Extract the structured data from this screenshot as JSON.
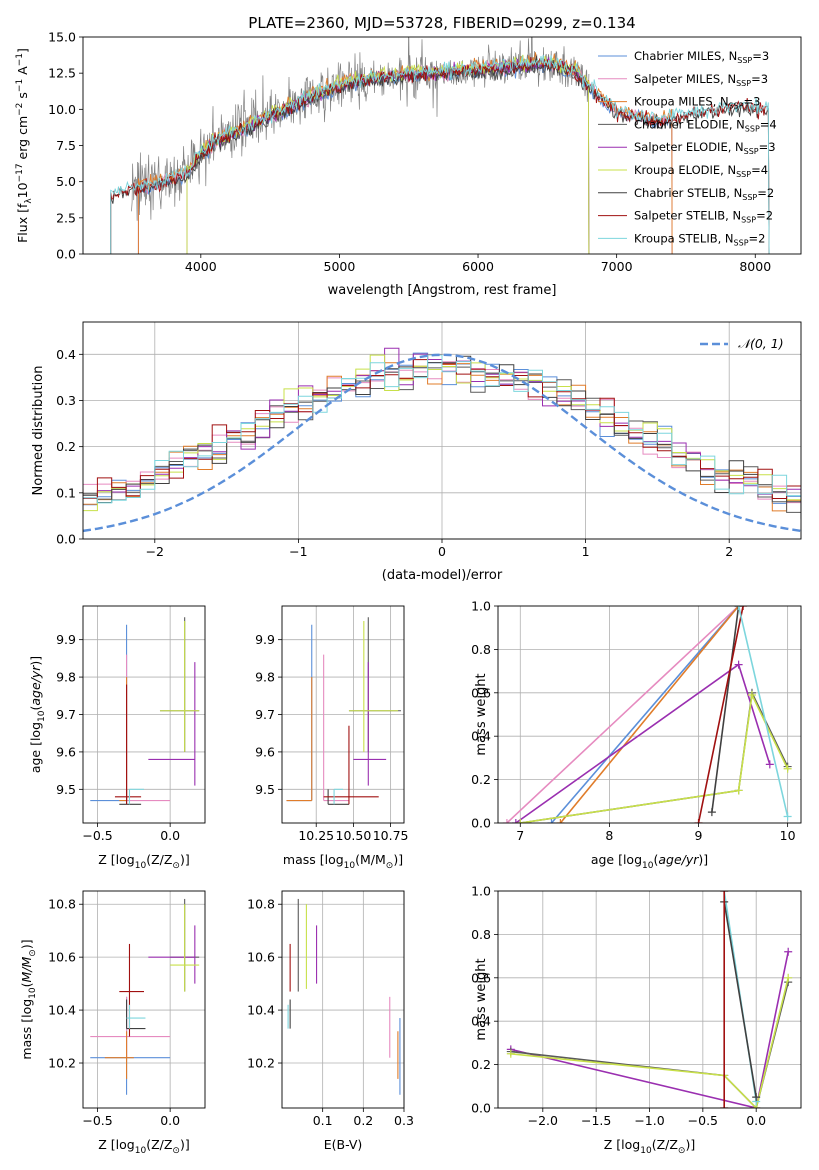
{
  "colors": {
    "Chabrier MILES": "#5b8fd9",
    "Salpeter MILES": "#e68bc0",
    "Kroupa MILES": "#e07c2a",
    "Chabrier ELODIE": "#5a5a5a",
    "Salpeter ELODIE": "#9a2fb0",
    "Kroupa ELODIE": "#c8e04a",
    "Chabrier STELIB": "#404040",
    "Salpeter STELIB": "#a01010",
    "Kroupa STELIB": "#7dd6dd",
    "data": "#808080",
    "normal": "#5b8fd9"
  },
  "chart_data": [
    {
      "type": "line",
      "id": "spectrum",
      "title": "PLATE=2360, MJD=53728, FIBERID=0299, z=0.134",
      "xlabel": "wavelength [Angstrom, rest frame]",
      "ylabel_pre": "Flux [f",
      "ylabel_sub1": "λ",
      "ylabel_mid1": "10",
      "ylabel_sup1": "−17",
      "ylabel_mid2": " erg cm",
      "ylabel_sup2": "−2",
      "ylabel_mid3": " s",
      "ylabel_sup3": "−1",
      "ylabel_mid4": " A",
      "ylabel_sup4": "−1",
      "ylabel_post": "]",
      "xlim": [
        3150,
        8330
      ],
      "ylim": [
        0,
        15
      ],
      "xticks": [
        4000,
        5000,
        6000,
        7000,
        8000
      ],
      "yticks": [
        0.0,
        2.5,
        5.0,
        7.5,
        10.0,
        12.5,
        15.0
      ],
      "legend_loc": "upper right",
      "legend": [
        {
          "name": "Chabrier MILES, N",
          "sub": "SSP",
          "tail": "=3",
          "color_key": "Chabrier MILES"
        },
        {
          "name": "Salpeter MILES, N",
          "sub": "SSP",
          "tail": "=3",
          "color_key": "Salpeter MILES"
        },
        {
          "name": "Kroupa MILES, N",
          "sub": "SSP",
          "tail": "=3",
          "color_key": "Kroupa MILES"
        },
        {
          "name": "Chabrier ELODIE, N",
          "sub": "SSP",
          "tail": "=4",
          "color_key": "Chabrier ELODIE"
        },
        {
          "name": "Salpeter ELODIE, N",
          "sub": "SSP",
          "tail": "=3",
          "color_key": "Salpeter ELODIE"
        },
        {
          "name": "Kroupa ELODIE, N",
          "sub": "SSP",
          "tail": "=4",
          "color_key": "Kroupa ELODIE"
        },
        {
          "name": "Chabrier STELIB, N",
          "sub": "SSP",
          "tail": "=2",
          "color_key": "Chabrier STELIB"
        },
        {
          "name": "Salpeter STELIB, N",
          "sub": "SSP",
          "tail": "=2",
          "color_key": "Salpeter STELIB"
        },
        {
          "name": "Kroupa STELIB, N",
          "sub": "SSP",
          "tail": "=2",
          "color_key": "Kroupa STELIB"
        }
      ],
      "continuum": [
        [
          3350,
          4.0
        ],
        [
          3500,
          4.6
        ],
        [
          3650,
          4.7
        ],
        [
          3800,
          5.2
        ],
        [
          3900,
          5.6
        ],
        [
          4000,
          6.8
        ],
        [
          4100,
          7.8
        ],
        [
          4300,
          8.6
        ],
        [
          4500,
          9.5
        ],
        [
          4700,
          10.4
        ],
        [
          4900,
          11.3
        ],
        [
          5100,
          11.9
        ],
        [
          5300,
          12.2
        ],
        [
          5500,
          12.4
        ],
        [
          5700,
          12.5
        ],
        [
          5900,
          12.7
        ],
        [
          6100,
          12.8
        ],
        [
          6300,
          13.0
        ],
        [
          6500,
          13.2
        ],
        [
          6700,
          12.6
        ],
        [
          7000,
          9.8
        ],
        [
          7300,
          9.2
        ],
        [
          7600,
          9.8
        ],
        [
          7900,
          10.2
        ],
        [
          8100,
          10.0
        ]
      ],
      "model_coverage": {
        "MILES": [
          3550,
          7400
        ],
        "ELODIE": [
          3900,
          6800
        ],
        "STELIB": [
          3350,
          8100
        ]
      },
      "data_range": [
        3500,
        6800
      ]
    },
    {
      "type": "histogram",
      "id": "residuals",
      "xlabel": "(data-model)/error",
      "ylabel": "Normed distribution",
      "xlim": [
        -2.5,
        2.5
      ],
      "ylim": [
        0,
        0.47
      ],
      "xticks": [
        -2,
        -1,
        0,
        1,
        2
      ],
      "yticks": [
        0.0,
        0.1,
        0.2,
        0.3,
        0.4
      ],
      "bin_width": 0.1,
      "legend_label": "𝒩(0, 1)",
      "legend_loc": "upper right"
    },
    {
      "type": "errorbar",
      "id": "age-vs-Z",
      "xlabel_pre": "Z [log",
      "xlabel_sub": "10",
      "xlabel_post": "(Z/Z",
      "xlabel_sub2": "⊙",
      "xlabel_end": ")]",
      "ylabel": "age  [log₁₀(age/yr)]",
      "xlim": [
        -0.6,
        0.24
      ],
      "ylim": [
        9.41,
        9.99
      ],
      "xticks": [
        -0.5,
        0.0
      ],
      "yticks": [
        9.5,
        9.6,
        9.7,
        9.8,
        9.9
      ],
      "points": [
        {
          "k": "Chabrier MILES",
          "x": -0.3,
          "xe": [
            -0.55,
            -0.3
          ],
          "y": 9.47,
          "ye": [
            9.47,
            9.94
          ]
        },
        {
          "k": "Salpeter MILES",
          "x": -0.3,
          "xe": [
            -0.3,
            0.0
          ],
          "y": 9.47,
          "ye": [
            9.47,
            9.86
          ]
        },
        {
          "k": "Kroupa MILES",
          "x": -0.3,
          "xe": [
            -0.35,
            -0.3
          ],
          "y": 9.47,
          "ye": [
            9.47,
            9.8
          ]
        },
        {
          "k": "Chabrier ELODIE",
          "x": 0.1,
          "xe": [
            -0.07,
            0.2
          ],
          "y": 9.71,
          "ye": [
            9.6,
            9.96
          ]
        },
        {
          "k": "Salpeter ELODIE",
          "x": 0.17,
          "xe": [
            -0.15,
            0.17
          ],
          "y": 9.58,
          "ye": [
            9.51,
            9.84
          ]
        },
        {
          "k": "Kroupa ELODIE",
          "x": 0.1,
          "xe": [
            -0.07,
            0.2
          ],
          "y": 9.71,
          "ye": [
            9.6,
            9.95
          ]
        },
        {
          "k": "Chabrier STELIB",
          "x": -0.3,
          "xe": [
            -0.35,
            -0.2
          ],
          "y": 9.46,
          "ye": [
            9.46,
            9.5
          ]
        },
        {
          "k": "Salpeter STELIB",
          "x": -0.3,
          "xe": [
            -0.38,
            -0.2
          ],
          "y": 9.48,
          "ye": [
            9.46,
            9.78
          ]
        },
        {
          "k": "Kroupa STELIB",
          "x": -0.28,
          "xe": [
            -0.28,
            -0.18
          ],
          "y": 9.5,
          "ye": [
            9.46,
            9.5
          ]
        }
      ]
    },
    {
      "type": "errorbar",
      "id": "age-vs-mass",
      "xlabel_pre": "mass [log",
      "xlabel_sub": "10",
      "xlabel_post": "(M/M",
      "xlabel_sub2": "⊙",
      "xlabel_end": ")]",
      "xlim": [
        10.02,
        10.84
      ],
      "ylim": [
        9.41,
        9.99
      ],
      "xticks": [
        10.25,
        10.5,
        10.75
      ],
      "xticklabels": [
        "10.25",
        "10.50",
        "10.75"
      ],
      "yticks": [
        9.5,
        9.6,
        9.7,
        9.8,
        9.9
      ],
      "points": [
        {
          "k": "Chabrier MILES",
          "x": 10.22,
          "xe": [
            10.05,
            10.22
          ],
          "y": 9.47,
          "ye": [
            9.47,
            9.94
          ]
        },
        {
          "k": "Salpeter MILES",
          "x": 10.3,
          "xe": [
            10.3,
            10.47
          ],
          "y": 9.47,
          "ye": [
            9.47,
            9.86
          ]
        },
        {
          "k": "Kroupa MILES",
          "x": 10.22,
          "xe": [
            10.05,
            10.22
          ],
          "y": 9.47,
          "ye": [
            9.47,
            9.8
          ]
        },
        {
          "k": "Chabrier ELODIE",
          "x": 10.6,
          "xe": [
            10.47,
            10.82
          ],
          "y": 9.71,
          "ye": [
            9.6,
            9.96
          ]
        },
        {
          "k": "Salpeter ELODIE",
          "x": 10.6,
          "xe": [
            10.5,
            10.72
          ],
          "y": 9.58,
          "ye": [
            9.51,
            9.84
          ]
        },
        {
          "k": "Kroupa ELODIE",
          "x": 10.57,
          "xe": [
            10.47,
            10.8
          ],
          "y": 9.71,
          "ye": [
            9.6,
            9.95
          ]
        },
        {
          "k": "Chabrier STELIB",
          "x": 10.33,
          "xe": [
            10.33,
            10.47
          ],
          "y": 9.46,
          "ye": [
            9.46,
            9.5
          ]
        },
        {
          "k": "Salpeter STELIB",
          "x": 10.47,
          "xe": [
            10.3,
            10.67
          ],
          "y": 9.48,
          "ye": [
            9.46,
            9.67
          ]
        },
        {
          "k": "Kroupa STELIB",
          "x": 10.37,
          "xe": [
            10.37,
            10.43
          ],
          "y": 9.5,
          "ye": [
            9.46,
            9.5
          ]
        }
      ]
    },
    {
      "type": "line",
      "id": "mass-weight-vs-age",
      "xlabel": "age  [log₁₀(age/yr)]",
      "ylabel": "mass weight",
      "xlim": [
        6.75,
        10.15
      ],
      "ylim": [
        0,
        1
      ],
      "xticks": [
        7,
        8,
        9,
        10
      ],
      "yticks": [
        0.0,
        0.2,
        0.4,
        0.6,
        0.8,
        1.0
      ],
      "series": [
        {
          "k": "Salpeter MILES",
          "x": [
            6.85,
            9.45
          ],
          "y": [
            0.0,
            1.0
          ]
        },
        {
          "k": "Chabrier MILES",
          "x": [
            7.35,
            9.45
          ],
          "y": [
            0.0,
            1.0
          ]
        },
        {
          "k": "Kroupa MILES",
          "x": [
            7.45,
            9.45
          ],
          "y": [
            0.0,
            1.0
          ]
        },
        {
          "k": "Salpeter ELODIE",
          "x": [
            6.95,
            9.45,
            9.8
          ],
          "y": [
            0.0,
            0.73,
            0.27
          ]
        },
        {
          "k": "Chabrier ELODIE",
          "x": [
            7.0,
            9.45,
            9.6,
            10.0
          ],
          "y": [
            0.0,
            0.15,
            0.6,
            0.26
          ]
        },
        {
          "k": "Kroupa ELODIE",
          "x": [
            7.0,
            9.45,
            9.6,
            10.0
          ],
          "y": [
            0.0,
            0.15,
            0.59,
            0.25
          ]
        },
        {
          "k": "Chabrier STELIB",
          "x": [
            9.15,
            9.45
          ],
          "y": [
            0.05,
            1.0
          ]
        },
        {
          "k": "Salpeter STELIB",
          "x": [
            9.0,
            9.5
          ],
          "y": [
            0.0,
            1.0
          ]
        },
        {
          "k": "Kroupa STELIB",
          "x": [
            9.45,
            10.0
          ],
          "y": [
            1.0,
            0.03
          ]
        }
      ]
    },
    {
      "type": "errorbar",
      "id": "mass-vs-Z",
      "xlabel_pre": "Z [log",
      "xlabel_sub": "10",
      "xlabel_post": "(Z/Z",
      "xlabel_sub2": "⊙",
      "xlabel_end": ")]",
      "ylabel": "mass [log₁₀(M/M⊙)]",
      "xlim": [
        -0.6,
        0.24
      ],
      "ylim": [
        10.03,
        10.85
      ],
      "xticks": [
        -0.5,
        0.0
      ],
      "yticks": [
        10.2,
        10.4,
        10.6,
        10.8
      ],
      "points": [
        {
          "k": "Chabrier MILES",
          "x": -0.3,
          "xe": [
            -0.55,
            0.0
          ],
          "y": 10.22,
          "ye": [
            10.08,
            10.45
          ]
        },
        {
          "k": "Salpeter MILES",
          "x": -0.3,
          "xe": [
            -0.55,
            0.0
          ],
          "y": 10.3,
          "ye": [
            10.22,
            10.45
          ]
        },
        {
          "k": "Kroupa MILES",
          "x": -0.3,
          "xe": [
            -0.45,
            -0.25
          ],
          "y": 10.22,
          "ye": [
            10.14,
            10.32
          ]
        },
        {
          "k": "Chabrier ELODIE",
          "x": 0.1,
          "xe": [
            0.0,
            0.2
          ],
          "y": 10.6,
          "ye": [
            10.47,
            10.82
          ]
        },
        {
          "k": "Salpeter ELODIE",
          "x": 0.17,
          "xe": [
            -0.15,
            0.17
          ],
          "y": 10.6,
          "ye": [
            10.5,
            10.72
          ]
        },
        {
          "k": "Kroupa ELODIE",
          "x": 0.1,
          "xe": [
            0.0,
            0.2
          ],
          "y": 10.57,
          "ye": [
            10.47,
            10.8
          ]
        },
        {
          "k": "Chabrier STELIB",
          "x": -0.3,
          "xe": [
            -0.3,
            -0.17
          ],
          "y": 10.33,
          "ye": [
            10.33,
            10.44
          ]
        },
        {
          "k": "Salpeter STELIB",
          "x": -0.28,
          "xe": [
            -0.35,
            -0.18
          ],
          "y": 10.47,
          "ye": [
            10.3,
            10.65
          ]
        },
        {
          "k": "Kroupa STELIB",
          "x": -0.28,
          "xe": [
            -0.3,
            -0.17
          ],
          "y": 10.37,
          "ye": [
            10.33,
            10.42
          ]
        }
      ]
    },
    {
      "type": "errorbar",
      "id": "mass-vs-EBV",
      "xlabel": "E(B-V)",
      "xlim": [
        0.0,
        0.3
      ],
      "ylim": [
        10.03,
        10.85
      ],
      "xticks": [
        0.1,
        0.2,
        0.3
      ],
      "yticks": [
        10.2,
        10.4,
        10.6,
        10.8
      ],
      "points": [
        {
          "k": "Chabrier MILES",
          "x": 0.29,
          "ye": [
            10.08,
            10.37
          ]
        },
        {
          "k": "Salpeter MILES",
          "x": 0.265,
          "ye": [
            10.22,
            10.45
          ]
        },
        {
          "k": "Kroupa MILES",
          "x": 0.285,
          "ye": [
            10.14,
            10.32
          ]
        },
        {
          "k": "Chabrier ELODIE",
          "x": 0.04,
          "ye": [
            10.47,
            10.82
          ]
        },
        {
          "k": "Salpeter ELODIE",
          "x": 0.085,
          "ye": [
            10.5,
            10.72
          ]
        },
        {
          "k": "Kroupa ELODIE",
          "x": 0.06,
          "ye": [
            10.48,
            10.8
          ]
        },
        {
          "k": "Chabrier STELIB",
          "x": 0.02,
          "ye": [
            10.33,
            10.44
          ]
        },
        {
          "k": "Salpeter STELIB",
          "x": 0.02,
          "ye": [
            10.47,
            10.65
          ]
        },
        {
          "k": "Kroupa STELIB",
          "x": 0.015,
          "ye": [
            10.33,
            10.42
          ]
        }
      ]
    },
    {
      "type": "line",
      "id": "mass-weight-vs-Z",
      "xlabel_pre": "Z [log",
      "xlabel_sub": "10",
      "xlabel_post": "(Z/Z",
      "xlabel_sub2": "⊙",
      "xlabel_end": ")]",
      "ylabel": "mass weight",
      "xlim": [
        -2.42,
        0.42
      ],
      "ylim": [
        0,
        1
      ],
      "xticks": [
        -2.0,
        -1.5,
        -1.0,
        -0.5,
        0.0
      ],
      "yticks": [
        0.0,
        0.2,
        0.4,
        0.6,
        0.8,
        1.0
      ],
      "series": [
        {
          "k": "Salpeter ELODIE",
          "x": [
            -2.3,
            0.0,
            0.3
          ],
          "y": [
            0.27,
            0.0,
            0.72
          ]
        },
        {
          "k": "Chabrier ELODIE",
          "x": [
            -2.3,
            -0.3,
            0.0,
            0.3
          ],
          "y": [
            0.26,
            0.15,
            0.0,
            0.58
          ]
        },
        {
          "k": "Kroupa ELODIE",
          "x": [
            -2.3,
            -0.3,
            0.0,
            0.3
          ],
          "y": [
            0.25,
            0.15,
            0.0,
            0.6
          ]
        },
        {
          "k": "Kroupa STELIB",
          "x": [
            -0.3,
            0.0
          ],
          "y": [
            1.0,
            0.03
          ]
        },
        {
          "k": "Chabrier STELIB",
          "x": [
            -0.3,
            0.0
          ],
          "y": [
            0.95,
            0.05
          ]
        },
        {
          "k": "Salpeter STELIB",
          "x": [
            -0.3,
            -0.3
          ],
          "y": [
            1.0,
            0.0
          ]
        }
      ]
    }
  ]
}
